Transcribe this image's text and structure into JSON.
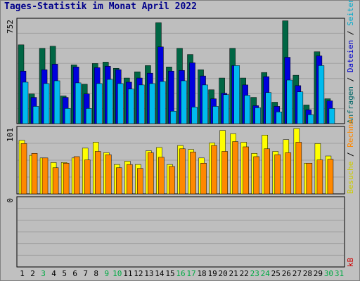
{
  "title": "Tages-Statistik im Monat April 2022",
  "right_labels": {
    "top": [
      {
        "text": "Anfragen",
        "color": "#006666"
      },
      {
        "text": "Dateien",
        "color": "#0000cc"
      },
      {
        "text": "Seiten",
        "color": "#00aacc"
      }
    ],
    "middle": [
      {
        "text": "Besuche",
        "color": "#cccc00"
      },
      {
        "text": "Rechner",
        "color": "#ff8800"
      }
    ],
    "bottom": [
      {
        "text": "kB",
        "color": "#cc0000"
      }
    ]
  },
  "y_max_labels": {
    "top": "752",
    "middle": "101",
    "bottom": "0"
  },
  "colors": {
    "anfragen": "#006644",
    "dateien": "#0000dd",
    "seiten": "#00bbee",
    "besuche": "#ffff00",
    "rechner": "#ff8800",
    "weekday": "#000000",
    "weekend": "#00aa44",
    "panel_bg": "#bebebe",
    "grid": "#a0a0a0"
  },
  "chart_data": [
    {
      "type": "bar",
      "title": "",
      "ylim": [
        0,
        752
      ],
      "categories": [
        "1",
        "2",
        "3",
        "4",
        "5",
        "6",
        "7",
        "8",
        "9",
        "10",
        "11",
        "12",
        "13",
        "14",
        "15",
        "16",
        "17",
        "18",
        "19",
        "20",
        "21",
        "22",
        "23",
        "24",
        "25",
        "26",
        "27",
        "28",
        "29",
        "30",
        "31"
      ],
      "series": [
        {
          "name": "Anfragen",
          "values": [
            570,
            215,
            545,
            560,
            200,
            425,
            285,
            435,
            445,
            400,
            330,
            375,
            420,
            730,
            410,
            545,
            500,
            390,
            245,
            330,
            545,
            330,
            190,
            370,
            155,
            744,
            350,
            135,
            520,
            180,
            0
          ]
        },
        {
          "name": "Dateien",
          "values": [
            380,
            190,
            390,
            430,
            190,
            410,
            215,
            405,
            415,
            390,
            300,
            330,
            365,
            555,
            380,
            385,
            440,
            345,
            180,
            220,
            420,
            280,
            130,
            340,
            125,
            480,
            275,
            100,
            490,
            165,
            0
          ]
        },
        {
          "name": "Seiten",
          "values": [
            300,
            125,
            290,
            310,
            110,
            295,
            110,
            290,
            320,
            290,
            250,
            280,
            290,
            305,
            90,
            310,
            120,
            280,
            125,
            210,
            420,
            205,
            115,
            225,
            85,
            315,
            230,
            65,
            420,
            110,
            0
          ]
        }
      ],
      "weekend_days": [
        "3",
        "9",
        "10",
        "16",
        "17",
        "23",
        "24",
        "30",
        "31"
      ]
    },
    {
      "type": "bar",
      "title": "",
      "ylim": [
        0,
        101
      ],
      "categories": [
        "1",
        "2",
        "3",
        "4",
        "5",
        "6",
        "7",
        "8",
        "9",
        "10",
        "11",
        "12",
        "13",
        "14",
        "15",
        "16",
        "17",
        "18",
        "19",
        "20",
        "21",
        "22",
        "23",
        "24",
        "25",
        "26",
        "27",
        "28",
        "29",
        "30",
        "31"
      ],
      "series": [
        {
          "name": "Besuche",
          "values": [
            82,
            59,
            55,
            48,
            48,
            55,
            70,
            79,
            63,
            45,
            50,
            45,
            66,
            71,
            45,
            74,
            68,
            55,
            78,
            97,
            92,
            79,
            62,
            90,
            65,
            83,
            100,
            47,
            77,
            58,
            0
          ]
        },
        {
          "name": "Rechner",
          "values": [
            77,
            62,
            55,
            40,
            47,
            57,
            52,
            65,
            60,
            40,
            45,
            39,
            63,
            56,
            42,
            69,
            64,
            47,
            74,
            65,
            80,
            72,
            57,
            69,
            60,
            63,
            79,
            47,
            52,
            53,
            0
          ]
        }
      ]
    },
    {
      "type": "bar",
      "title": "",
      "ylim": [
        0,
        1
      ],
      "categories": [
        "1",
        "2",
        "3",
        "4",
        "5",
        "6",
        "7",
        "8",
        "9",
        "10",
        "11",
        "12",
        "13",
        "14",
        "15",
        "16",
        "17",
        "18",
        "19",
        "20",
        "21",
        "22",
        "23",
        "24",
        "25",
        "26",
        "27",
        "28",
        "29",
        "30",
        "31"
      ],
      "series": [
        {
          "name": "kB",
          "values": [
            0,
            0,
            0,
            0,
            0,
            0,
            0,
            0,
            0,
            0,
            0,
            0,
            0,
            0,
            0,
            0,
            0,
            0,
            0,
            0,
            0,
            0,
            0,
            0,
            0,
            0,
            0,
            0,
            0,
            0,
            0
          ]
        }
      ]
    }
  ]
}
